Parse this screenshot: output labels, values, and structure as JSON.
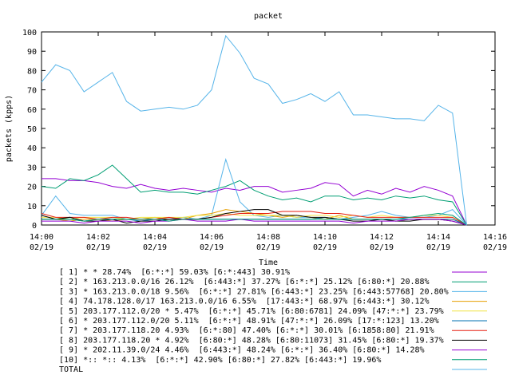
{
  "chart_data": {
    "type": "line",
    "title": "packet",
    "xlabel": "Time",
    "ylabel": "packets (kpps)",
    "xlim": [
      0,
      16
    ],
    "ylim": [
      0,
      100
    ],
    "xticks": [
      {
        "value": 0,
        "label": "14:00"
      },
      {
        "value": 2,
        "label": "14:02"
      },
      {
        "value": 4,
        "label": "14:04"
      },
      {
        "value": 6,
        "label": "14:06"
      },
      {
        "value": 8,
        "label": "14:08"
      },
      {
        "value": 10,
        "label": "14:10"
      },
      {
        "value": 12,
        "label": "14:12"
      },
      {
        "value": 14,
        "label": "14:14"
      },
      {
        "value": 16,
        "label": "14:16"
      }
    ],
    "xtick_dates": [
      "02/19",
      "02/19",
      "02/19",
      "02/19",
      "02/19",
      "02/19",
      "02/19",
      "02/19",
      "02/19"
    ],
    "yticks": [
      0,
      10,
      20,
      30,
      40,
      50,
      60,
      70,
      80,
      90,
      100
    ],
    "x": [
      0,
      0.5,
      1,
      1.5,
      2,
      2.5,
      3,
      3.5,
      4,
      4.5,
      5,
      5.5,
      6,
      6.5,
      7,
      7.5,
      8,
      8.5,
      9,
      9.5,
      10,
      10.5,
      11,
      11.5,
      12,
      12.5,
      13,
      13.5,
      14,
      14.5,
      15
    ],
    "series": [
      {
        "name": "[ 1] * * 28.74%  [6:*:*] 59.03% [6:*:443] 30.91%",
        "color": "#9400d3",
        "values": [
          24,
          24,
          23,
          23,
          22,
          20,
          19,
          21,
          19,
          18,
          19,
          18,
          17,
          19,
          18,
          20,
          20,
          17,
          18,
          19,
          22,
          21,
          15,
          18,
          16,
          19,
          17,
          20,
          18,
          15,
          0
        ]
      },
      {
        "name": "[ 2] * 163.213.0.0/16 26.12%  [6:443:*] 37.27% [6:*:*] 25.12% [6:80:*] 20.88%",
        "color": "#009e73",
        "values": [
          20,
          19,
          24,
          23,
          26,
          31,
          24,
          17,
          18,
          17,
          17,
          16,
          18,
          20,
          23,
          18,
          15,
          13,
          14,
          12,
          15,
          15,
          13,
          14,
          13,
          15,
          14,
          15,
          13,
          12,
          0
        ]
      },
      {
        "name": "[ 3] * 163.213.0.0/18 9.56%  [6:*:*] 27.81% [6:443:*] 23.25% [6:443:57768] 20.80%",
        "color": "#56b4e9",
        "values": [
          5,
          15,
          6,
          5,
          5,
          5,
          3,
          3,
          3,
          3,
          4,
          3,
          5,
          34,
          12,
          5,
          4,
          5,
          4,
          4,
          3,
          3,
          4,
          5,
          7,
          5,
          4,
          4,
          5,
          8,
          0
        ]
      },
      {
        "name": "[ 4] 74.178.128.0/17 163.213.0.0/16 6.55%  [17:443:*] 68.97% [6:443:*] 30.12%",
        "color": "#e69f00",
        "values": [
          3,
          3,
          2,
          3,
          3,
          2,
          3,
          3,
          4,
          3,
          3,
          5,
          6,
          8,
          7,
          6,
          5,
          4,
          5,
          4,
          3,
          5,
          3,
          3,
          3,
          2,
          3,
          3,
          3,
          3,
          0
        ]
      },
      {
        "name": "[ 5] 203.177.112.0/20 * 5.47%  [6:*:*] 45.71% [6:80:6781] 24.09% [47:*:*] 23.79%",
        "color": "#f0e442",
        "values": [
          4,
          4,
          3,
          4,
          4,
          4,
          3,
          4,
          4,
          4,
          4,
          5,
          5,
          6,
          5,
          5,
          5,
          5,
          4,
          5,
          5,
          4,
          5,
          4,
          5,
          4,
          4,
          5,
          5,
          4,
          0
        ]
      },
      {
        "name": "[ 6] * 203.177.112.0/20 5.11%  [6:*:*] 48.91% [47:*:*] 26.09% [17:*:123] 13.20%",
        "color": "#0072b2",
        "values": [
          3,
          3,
          3,
          2,
          3,
          3,
          3,
          2,
          3,
          3,
          3,
          3,
          3,
          3,
          3,
          3,
          3,
          3,
          3,
          3,
          4,
          3,
          3,
          3,
          3,
          3,
          3,
          3,
          3,
          3,
          0
        ]
      },
      {
        "name": "[ 7] * 203.177.118.20 4.93%  [6:*:80] 47.40% [6:*:*] 30.01% [6:1858:80] 21.91%",
        "color": "#e51e10",
        "values": [
          6,
          4,
          4,
          4,
          3,
          4,
          4,
          3,
          3,
          4,
          3,
          3,
          4,
          5,
          6,
          6,
          6,
          7,
          7,
          7,
          6,
          6,
          5,
          4,
          4,
          4,
          4,
          4,
          4,
          4,
          0
        ]
      },
      {
        "name": "[ 8] 203.177.118.20 * 4.92%  [6:80:*] 48.28% [6:80:11073] 31.45% [6:80:*] 19.37%",
        "color": "#000000",
        "values": [
          5,
          3,
          4,
          2,
          2,
          3,
          1,
          2,
          2,
          3,
          3,
          3,
          4,
          6,
          7,
          8,
          8,
          5,
          5,
          4,
          4,
          3,
          2,
          2,
          3,
          2,
          2,
          3,
          3,
          2,
          0
        ]
      },
      {
        "name": "[ 9] * 202.11.39.0/24 4.46%  [6:443:*] 48.24% [6:*:*] 36.40% [6:80:*] 14.28%",
        "color": "#9400d3",
        "values": [
          2,
          2,
          2,
          1,
          2,
          2,
          2,
          1,
          2,
          2,
          3,
          2,
          2,
          2,
          3,
          2,
          2,
          2,
          2,
          2,
          2,
          2,
          1,
          2,
          2,
          2,
          3,
          3,
          3,
          2,
          0
        ]
      },
      {
        "name": "[10] *:: *:: 4.13%  [6:*:*] 42.90% [6:80:*] 27.82% [6:443:*] 19.96%",
        "color": "#009e73",
        "values": [
          3,
          3,
          3,
          2,
          3,
          3,
          3,
          3,
          3,
          2,
          3,
          3,
          3,
          3,
          3,
          3,
          3,
          3,
          3,
          3,
          3,
          3,
          3,
          3,
          3,
          3,
          4,
          5,
          6,
          5,
          0
        ]
      },
      {
        "name": "TOTAL",
        "color": "#56b4e9",
        "values": [
          74,
          83,
          80,
          69,
          74,
          79,
          64,
          59,
          60,
          61,
          60,
          62,
          70,
          98,
          89,
          76,
          73,
          63,
          65,
          68,
          64,
          69,
          57,
          57,
          56,
          55,
          55,
          54,
          62,
          58,
          0
        ]
      }
    ]
  }
}
